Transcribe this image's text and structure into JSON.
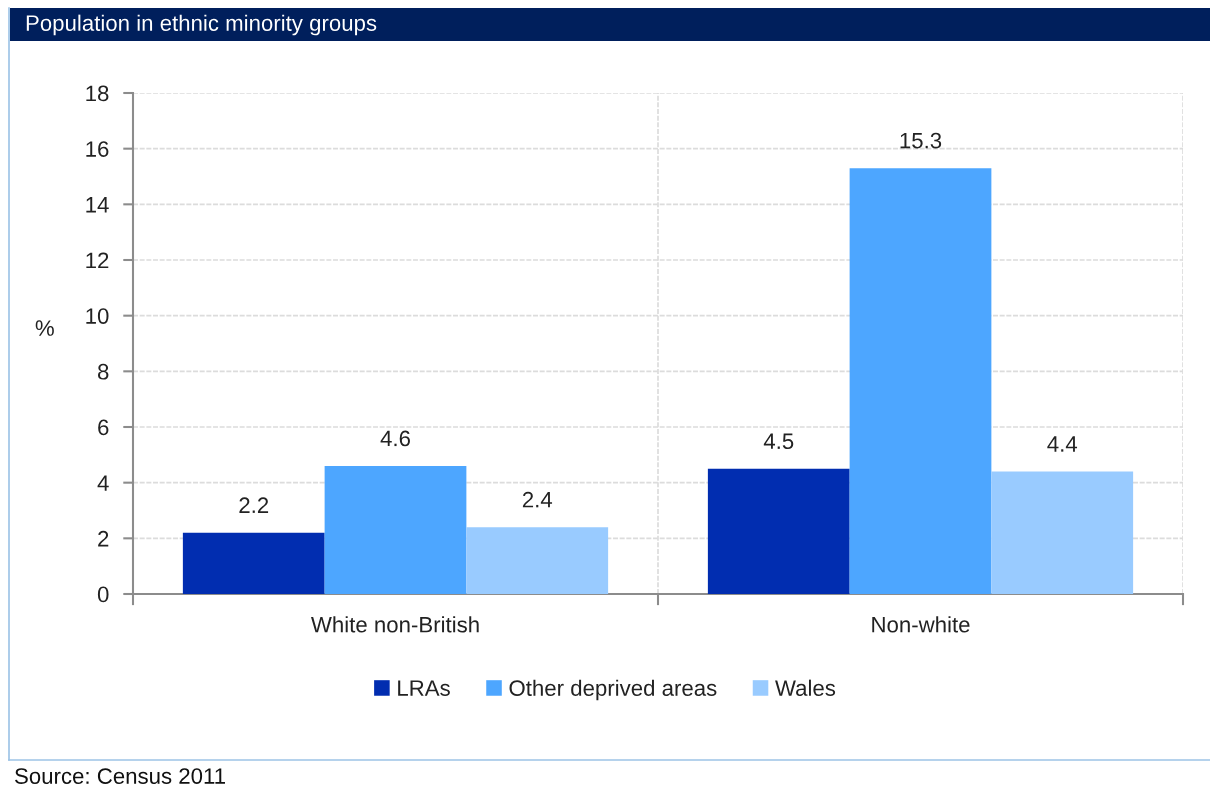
{
  "chart_data": {
    "type": "bar",
    "title": "Population in ethnic minority groups",
    "ylabel": "%",
    "categories": [
      "White non-British",
      "Non-white"
    ],
    "series": [
      {
        "name": "LRAs",
        "color": "#012db0",
        "values": [
          2.2,
          4.5
        ]
      },
      {
        "name": "Other deprived areas",
        "color": "#4da6ff",
        "values": [
          4.6,
          15.3
        ]
      },
      {
        "name": "Wales",
        "color": "#99cbff",
        "values": [
          2.4,
          4.4
        ]
      }
    ],
    "ylim": [
      0,
      18
    ],
    "yticks": [
      0,
      2,
      4,
      6,
      8,
      10,
      12,
      14,
      16,
      18
    ],
    "grid": true,
    "legend": "bottom",
    "data_labels": true,
    "annotations": [
      "Source: Census 2011"
    ]
  }
}
